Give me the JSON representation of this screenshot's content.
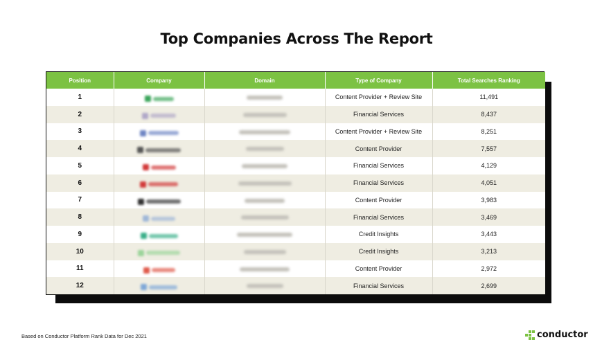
{
  "title": "Top Companies Across The Report",
  "table": {
    "headers": [
      "Position",
      "Company",
      "Domain",
      "Type of Company",
      "Total Searches Ranking"
    ],
    "rows": [
      {
        "position": "1",
        "type": "Content Provider + Review Site",
        "total": "11,491",
        "logo_color": "#3aa55a"
      },
      {
        "position": "2",
        "type": "Financial Services",
        "total": "8,437",
        "logo_color": "#b0a8c8"
      },
      {
        "position": "3",
        "type": "Content Provider + Review Site",
        "total": "8,251",
        "logo_color": "#6f86c4"
      },
      {
        "position": "4",
        "type": "Content Provider",
        "total": "7,557",
        "logo_color": "#555555"
      },
      {
        "position": "5",
        "type": "Financial Services",
        "total": "4,129",
        "logo_color": "#d23a3a"
      },
      {
        "position": "6",
        "type": "Financial Services",
        "total": "4,051",
        "logo_color": "#d23a3a"
      },
      {
        "position": "7",
        "type": "Content Provider",
        "total": "3,983",
        "logo_color": "#333333"
      },
      {
        "position": "8",
        "type": "Financial Services",
        "total": "3,469",
        "logo_color": "#9fb7d8"
      },
      {
        "position": "9",
        "type": "Credit Insights",
        "total": "3,443",
        "logo_color": "#3bb08a"
      },
      {
        "position": "10",
        "type": "Credit Insights",
        "total": "3,213",
        "logo_color": "#9bd49a"
      },
      {
        "position": "11",
        "type": "Content Provider",
        "total": "2,972",
        "logo_color": "#e05a4a"
      },
      {
        "position": "12",
        "type": "Financial Services",
        "total": "2,699",
        "logo_color": "#7fa8d8"
      }
    ]
  },
  "footnote": "Based on Conductor Platform Rank Data for Dec 2021",
  "brand": {
    "name": "conductor",
    "accent": "#7cc243"
  },
  "colors": {
    "header_bg": "#7cc243",
    "row_alt": "#efede2",
    "shadow": "#0c0c0c"
  }
}
